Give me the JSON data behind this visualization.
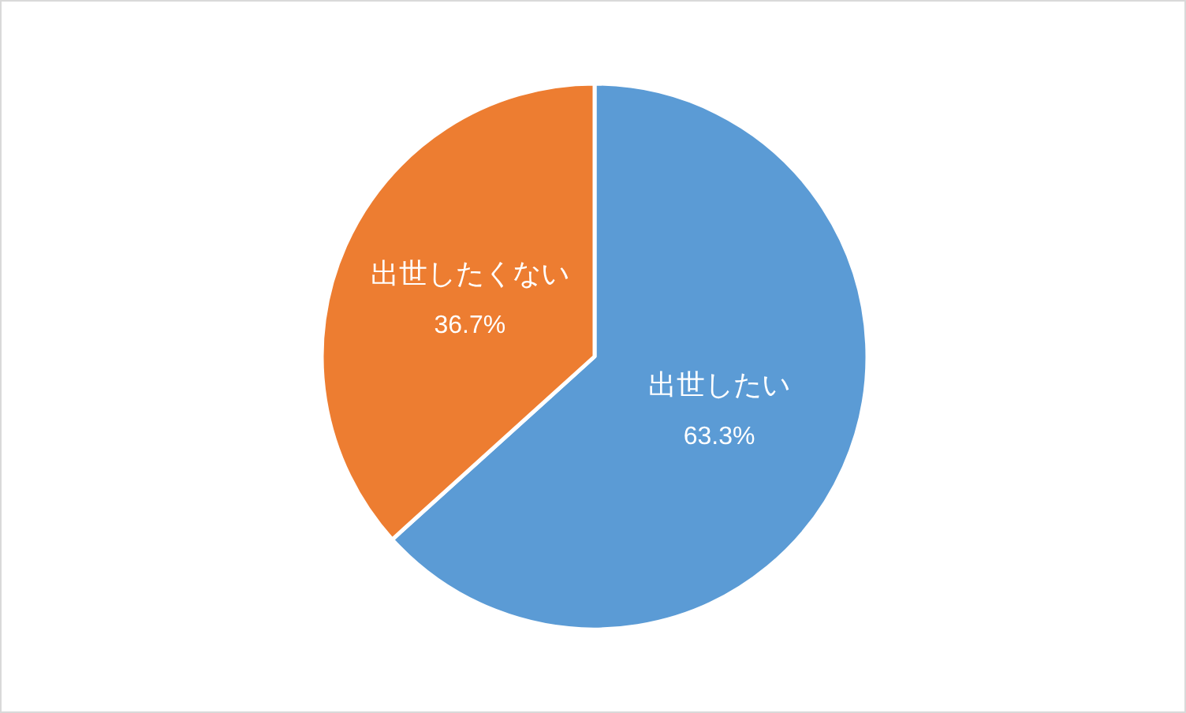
{
  "chart_data": {
    "type": "pie",
    "categories": [
      "出世したい",
      "出世したくない"
    ],
    "values": [
      63.3,
      36.7
    ],
    "colors": [
      "#5b9bd5",
      "#ed7d31"
    ],
    "value_labels": [
      "63.3%",
      "36.7%"
    ]
  }
}
